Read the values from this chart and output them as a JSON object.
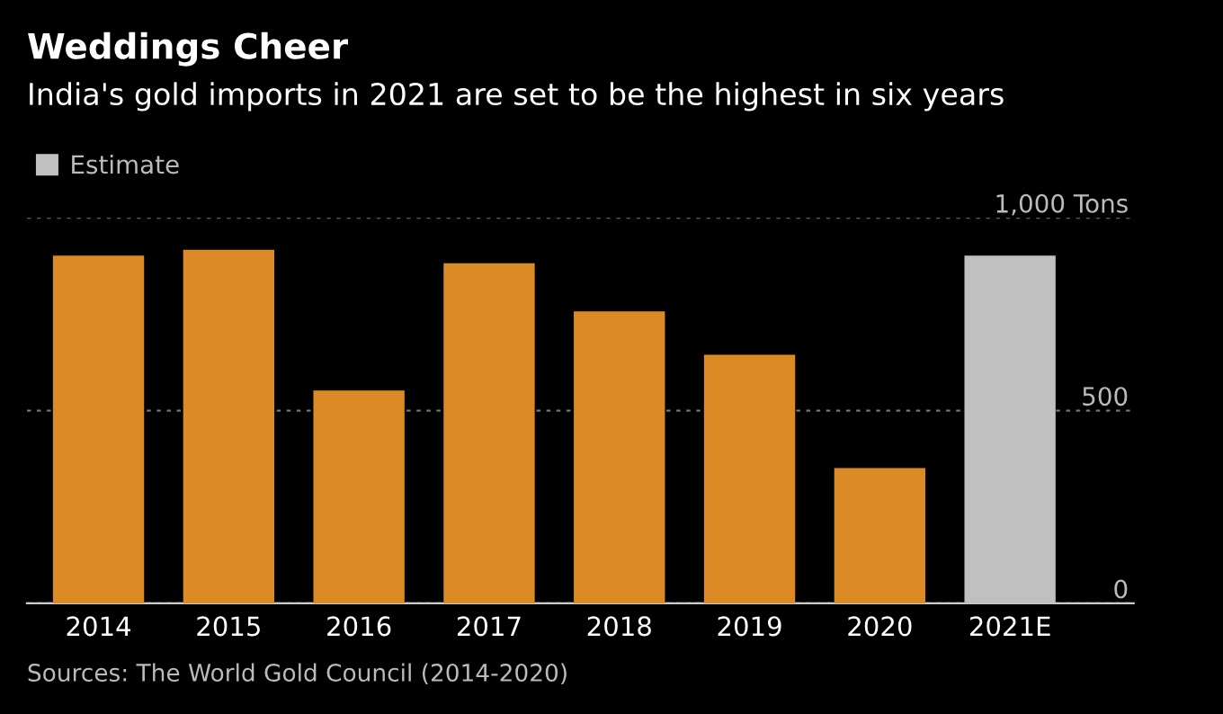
{
  "chart_data": {
    "type": "bar",
    "title": "Weddings Cheer",
    "subtitle": "India's gold imports in 2021 are set to be the highest in six years",
    "categories": [
      "2014",
      "2015",
      "2016",
      "2017",
      "2018",
      "2019",
      "2020",
      "2021E"
    ],
    "series": [
      {
        "color": "#db8a26",
        "values": [
          902,
          917,
          552,
          882,
          757,
          645,
          351,
          null
        ]
      },
      {
        "name": "Estimate",
        "color": "#c0c0c0",
        "values": [
          null,
          null,
          null,
          null,
          null,
          null,
          null,
          902
        ]
      }
    ],
    "ylim": [
      0,
      1000
    ],
    "yticks": [
      0,
      500,
      {
        "value": 1000,
        "label": "1,000 Tons"
      }
    ],
    "grid": "y",
    "legend": "top left",
    "annotations": [
      "Sources: The World Gold Council (2014-2020)"
    ]
  }
}
